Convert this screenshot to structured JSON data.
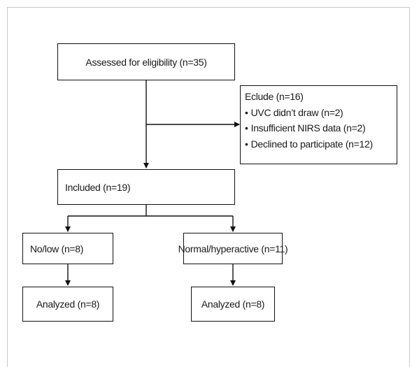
{
  "assessed": "Assessed for eligibility (n=35)",
  "exclusion": {
    "title": "Eclude (n=16)",
    "items": [
      "UVC didn’t draw (n=2)",
      "Insufficient NIRS data (n=2)",
      "Declined to participate (n=12)"
    ]
  },
  "included": "Included (n=19)",
  "groups": [
    {
      "label": "No/low (n=8)",
      "analyzed": "Analyzed (n=8)"
    },
    {
      "label": "Normal/hyperactive (n=11)",
      "analyzed": "Analyzed (n=8)"
    }
  ]
}
